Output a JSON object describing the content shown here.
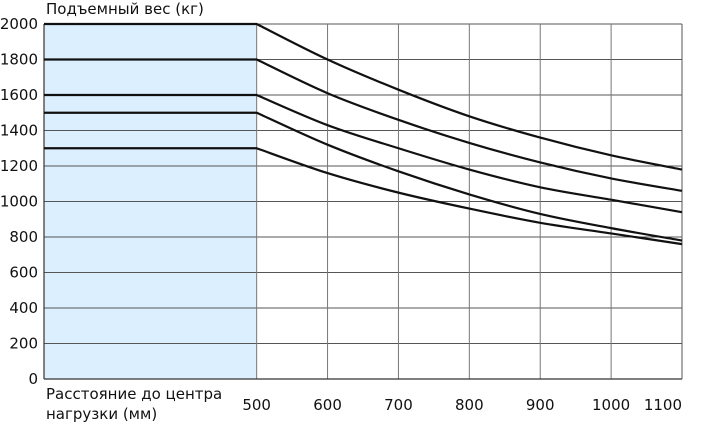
{
  "chart_data": {
    "type": "line",
    "ylabel": "Подъемный вес (кг)",
    "xlabel_lines": [
      "Расстояние до центра",
      "нагрузки (мм)"
    ],
    "x_ticks": [
      500,
      600,
      700,
      800,
      900,
      1000,
      1100
    ],
    "y_ticks": [
      0,
      200,
      400,
      600,
      800,
      1000,
      1200,
      1400,
      1600,
      1800,
      2000
    ],
    "xlim": [
      200,
      1100
    ],
    "ylim": [
      0,
      2000
    ],
    "grid": true,
    "shaded_region": {
      "x_from": 200,
      "x_to": 500,
      "color": "#dcefff"
    },
    "line_color": "#111111",
    "series": [
      {
        "x": [
          200,
          500,
          600,
          700,
          800,
          900,
          1000,
          1100
        ],
        "values": [
          2000,
          2000,
          1800,
          1630,
          1480,
          1360,
          1260,
          1180
        ]
      },
      {
        "x": [
          200,
          500,
          600,
          700,
          800,
          900,
          1000,
          1100
        ],
        "values": [
          1800,
          1800,
          1610,
          1460,
          1330,
          1220,
          1130,
          1060
        ]
      },
      {
        "x": [
          200,
          500,
          600,
          700,
          800,
          900,
          1000,
          1100
        ],
        "values": [
          1600,
          1600,
          1430,
          1300,
          1180,
          1080,
          1010,
          940
        ]
      },
      {
        "x": [
          200,
          500,
          600,
          700,
          800,
          900,
          1000,
          1100
        ],
        "values": [
          1500,
          1500,
          1320,
          1170,
          1040,
          930,
          850,
          780
        ]
      },
      {
        "x": [
          200,
          500,
          600,
          700,
          800,
          900,
          1000,
          1100
        ],
        "values": [
          1300,
          1300,
          1160,
          1050,
          960,
          880,
          820,
          760
        ]
      }
    ]
  }
}
